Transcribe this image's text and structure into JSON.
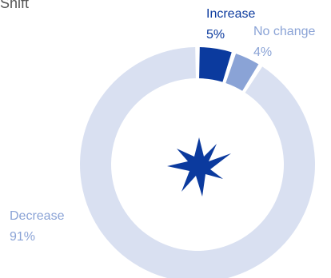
{
  "header": {
    "title_fragment": "Shift"
  },
  "colors": {
    "increase": "#0b3a9e",
    "no_change": "#8aa3d6",
    "decrease": "#d9e0f1",
    "icon": "#0b3a9e",
    "label_increase": "#0b3a9e",
    "label_no_change": "#8aa3d6",
    "label_decrease": "#8aa3d6"
  },
  "center_icon": {
    "name": "starburst-icon"
  },
  "chart_data": {
    "type": "pie",
    "style": "donut",
    "categories": [
      "Increase",
      "No change",
      "Decrease"
    ],
    "values": [
      5,
      4,
      91
    ],
    "value_labels": [
      "5%",
      "4%",
      "91%"
    ],
    "legend": "none"
  }
}
